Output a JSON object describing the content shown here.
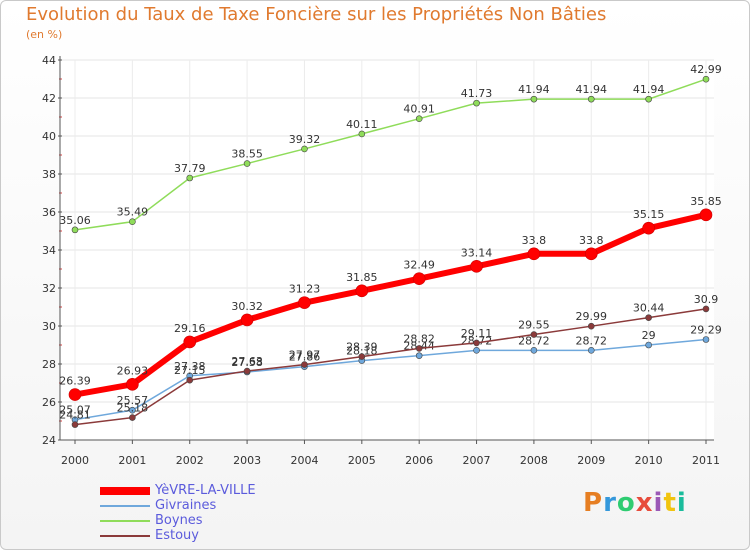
{
  "chart_data": {
    "type": "line",
    "title": "Evolution du Taux de Taxe Foncière sur les Propriétés Non Bâties",
    "ylabel": "(en %)",
    "xlabel": "",
    "categories": [
      "2000",
      "2001",
      "2002",
      "2003",
      "2004",
      "2005",
      "2006",
      "2007",
      "2008",
      "2009",
      "2010",
      "2011"
    ],
    "ylim": [
      24,
      44
    ],
    "yticks": [
      "24",
      "26",
      "28",
      "30",
      "32",
      "34",
      "36",
      "38",
      "40",
      "42",
      "44"
    ],
    "grid": true,
    "legend_placement": "bottom-left",
    "series": [
      {
        "name": "YèVRE-LA-VILLE",
        "color": "#ff0000",
        "values": [
          26.39,
          26.93,
          29.16,
          30.32,
          31.23,
          31.85,
          32.49,
          33.14,
          33.8,
          33.8,
          35.15,
          35.85
        ],
        "labels": [
          "26.39",
          "26.93",
          "29.16",
          "30.32",
          "31.23",
          "31.85",
          "32.49",
          "33.14",
          "33.8",
          "33.8",
          "35.15",
          "35.85"
        ]
      },
      {
        "name": "Givraines",
        "color": "#6fa8dc",
        "values": [
          25.07,
          25.57,
          27.38,
          27.58,
          27.86,
          28.18,
          28.44,
          28.72,
          28.72,
          28.72,
          29,
          29.29
        ],
        "labels": [
          "25.07",
          "25.57",
          "27.38",
          "27.58",
          "27.86",
          "28.18",
          "28.44",
          "28.72",
          "28.72",
          "28.72",
          "29",
          "29.29"
        ]
      },
      {
        "name": "Boynes",
        "color": "#8fdc5a",
        "values": [
          35.06,
          35.49,
          37.79,
          38.55,
          39.32,
          40.11,
          40.91,
          41.73,
          41.94,
          41.94,
          41.94,
          42.99
        ],
        "labels": [
          "35.06",
          "35.49",
          "37.79",
          "38.55",
          "39.32",
          "40.11",
          "40.91",
          "41.73",
          "41.94",
          "41.94",
          "41.94",
          "42.99"
        ]
      },
      {
        "name": "Estouy",
        "color": "#8b3a3a",
        "values": [
          24.81,
          25.18,
          27.15,
          27.63,
          27.97,
          28.39,
          28.82,
          29.11,
          29.55,
          29.99,
          30.44,
          30.9
        ],
        "labels": [
          "24.81",
          "25.18",
          "27.15",
          "27.63",
          "27.97",
          "28.39",
          "28.82",
          "29.11",
          "29.55",
          "29.99",
          "30.44",
          "30.9"
        ]
      }
    ]
  },
  "logo": {
    "text": "Proxiti",
    "colors": [
      "#e67e22",
      "#3498db",
      "#2ecc71",
      "#e74c3c",
      "#9b59b6",
      "#f1c40f",
      "#1abc9c"
    ]
  }
}
